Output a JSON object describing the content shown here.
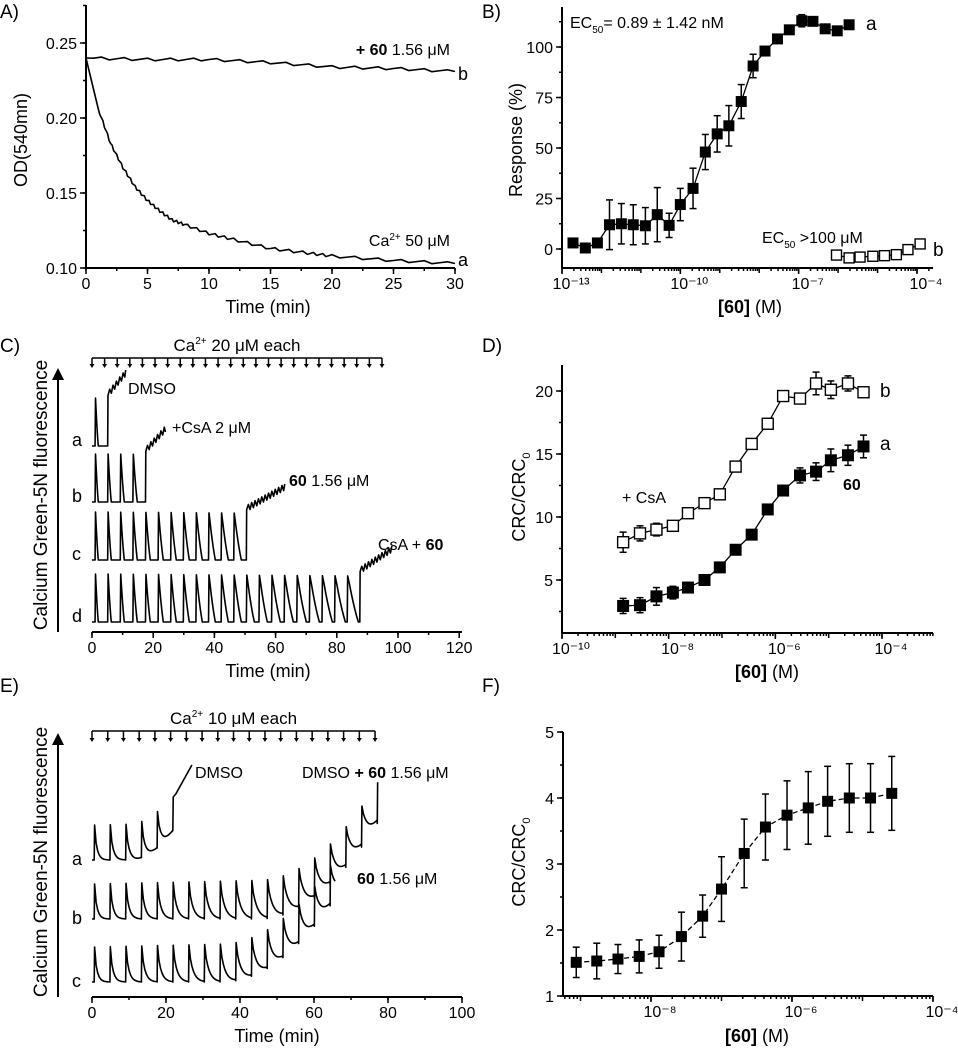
{
  "chart_data": [
    {
      "panel_label": "A)",
      "type": "line",
      "xlabel": [
        {
          "t": "Time (min)"
        }
      ],
      "ylabel": [
        {
          "t": "OD(540mn)"
        }
      ],
      "x_scale": "linear",
      "xlim": [
        0,
        30
      ],
      "ylim": [
        0.1,
        0.275
      ],
      "x_ticks": [
        {
          "value": 0,
          "label": "0"
        },
        {
          "value": 5,
          "label": "5"
        },
        {
          "value": 10,
          "label": "10"
        },
        {
          "value": 15,
          "label": "15"
        },
        {
          "value": 20,
          "label": "20"
        },
        {
          "value": 25,
          "label": "25"
        },
        {
          "value": 30,
          "label": "30"
        }
      ],
      "y_ticks": [
        {
          "value": 0.1,
          "label": "0.10"
        },
        {
          "value": 0.15,
          "label": "0.15"
        },
        {
          "value": 0.2,
          "label": "0.20"
        },
        {
          "value": 0.25,
          "label": "0.25"
        }
      ],
      "series": [
        {
          "name": "a",
          "annotation": [
            {
              "t": "Ca"
            },
            {
              "t": "2+",
              "sup": true
            },
            {
              "t": " 50 μM"
            }
          ],
          "x": [
            0,
            1,
            2,
            3,
            4,
            5,
            6,
            7,
            8,
            10,
            12,
            15,
            18,
            20,
            25,
            30
          ],
          "y": [
            0.24,
            0.206,
            0.183,
            0.167,
            0.154,
            0.145,
            0.138,
            0.132,
            0.129,
            0.123,
            0.119,
            0.113,
            0.11,
            0.108,
            0.105,
            0.103
          ]
        },
        {
          "name": "b",
          "annotation": [
            {
              "t": "+ 60",
              "bold": true
            },
            {
              "t": " 1.56 μM"
            }
          ],
          "x": [
            0,
            5,
            10,
            15,
            20,
            25,
            30
          ],
          "y": [
            0.24,
            0.239,
            0.239,
            0.237,
            0.234,
            0.233,
            0.231
          ]
        }
      ]
    },
    {
      "panel_label": "B)",
      "type": "scatter",
      "xlabel": [
        {
          "t": "[",
          "bold": true
        },
        {
          "t": "60",
          "bold": true
        },
        {
          "t": "]",
          "bold": true
        },
        {
          "t": " (M)"
        }
      ],
      "ylabel": [
        {
          "t": "Response (%)"
        }
      ],
      "x_scale": "log",
      "xlim": [
        1e-13,
        0.00025
      ],
      "ylim": [
        -9.4,
        120
      ],
      "x_ticks": [
        {
          "value": 1e-13,
          "label": "10⁻¹³"
        },
        {
          "value": 1e-10,
          "label": "10⁻¹⁰"
        },
        {
          "value": 1e-07,
          "label": "10⁻⁷"
        },
        {
          "value": 0.0001,
          "label": "10⁻⁴"
        }
      ],
      "y_ticks": [
        {
          "value": 0,
          "label": "0"
        },
        {
          "value": 25,
          "label": "25"
        },
        {
          "value": 50,
          "label": "50"
        },
        {
          "value": 75,
          "label": "75"
        },
        {
          "value": 100,
          "label": "100"
        }
      ],
      "annotations": [
        [
          {
            "t": "EC"
          },
          {
            "t": "50",
            "sub": true
          },
          {
            "t": "= 0.89 ± 1.42 nM"
          }
        ],
        [
          {
            "t": "EC"
          },
          {
            "t": "50",
            "sub": true
          },
          {
            "t": " >100 μM"
          }
        ]
      ],
      "series": [
        {
          "name": "a",
          "marker": "filled-square",
          "x": [
            1.9e-13,
            3.9e-13,
            7.9e-13,
            1.6e-12,
            3.2e-12,
            6.4e-12,
            1.3e-11,
            2.6e-11,
            5.2e-11,
            1e-10,
            2.1e-10,
            4.3e-10,
            8.6e-10,
            1.7e-09,
            3.5e-09,
            7e-09,
            1.4e-08,
            2.9e-08,
            5.8e-08,
            1.2e-07,
            2.3e-07,
            4.7e-07,
            9.5e-07,
            1.9e-06
          ],
          "y": [
            3,
            0.5,
            3,
            12,
            12.5,
            12,
            11.5,
            17,
            11.7,
            22,
            30,
            48,
            57,
            61,
            73,
            90.6,
            98,
            104,
            108.5,
            113,
            112.7,
            109,
            108,
            111
          ],
          "error": [
            1.5,
            1.5,
            1.5,
            12.3,
            10,
            9.9,
            9,
            13.4,
            6,
            8,
            10,
            8.7,
            9,
            10,
            8.4,
            5.8,
            2,
            1.5,
            1.5,
            3,
            2,
            1.5,
            1.5,
            1.5
          ]
        },
        {
          "name": "b",
          "marker": "open-square",
          "x": [
            9.1e-07,
            1.9e-06,
            3.6e-06,
            7.6e-06,
            1.5e-05,
            3e-05,
            5.9e-05,
            0.00012
          ],
          "y": [
            -3,
            -4.4,
            -4,
            -3.6,
            -3.3,
            -2.8,
            -0.3,
            2.5
          ],
          "error": [
            1.5,
            1.5,
            1.5,
            1.5,
            1.5,
            1.5,
            1.2,
            1.2
          ]
        }
      ]
    },
    {
      "panel_label": "C)",
      "type": "line",
      "xlabel": [
        {
          "t": "Time (min)"
        }
      ],
      "ylabel": [
        {
          "t": "Calcium Green-5N fluorescence"
        }
      ],
      "x_scale": "linear",
      "xlim": [
        0,
        120
      ],
      "x_ticks": [
        {
          "value": 0,
          "label": "0"
        },
        {
          "value": 20,
          "label": "20"
        },
        {
          "value": 40,
          "label": "40"
        },
        {
          "value": 60,
          "label": "60"
        },
        {
          "value": 80,
          "label": "80"
        },
        {
          "value": 100,
          "label": "100"
        },
        {
          "value": 120,
          "label": "120"
        }
      ],
      "additions_label": [
        {
          "t": "Ca"
        },
        {
          "t": "2+",
          "sup": true
        },
        {
          "t": " 20 μM each"
        }
      ],
      "additions": {
        "count": 24,
        "interval_min": 4.12
      },
      "traces": [
        {
          "label": "a",
          "annotation": [
            {
              "t": "DMSO"
            }
          ],
          "pulses_before_opening": 1,
          "end_min": 11
        },
        {
          "label": "b",
          "annotation": [
            {
              "t": "+CsA 2 μM"
            }
          ],
          "pulses_before_opening": 4,
          "end_min": 24
        },
        {
          "label": "c",
          "annotation": [
            {
              "t": "60",
              "bold": true
            },
            {
              "t": " 1.56 μM"
            }
          ],
          "pulses_before_opening": 12,
          "end_min": 63
        },
        {
          "label": "d",
          "annotation": [
            {
              "t": "CsA + "
            },
            {
              "t": "60",
              "bold": true
            }
          ],
          "pulses_before_opening": 21,
          "end_min": 98
        }
      ]
    },
    {
      "panel_label": "D)",
      "type": "scatter",
      "xlabel": [
        {
          "t": "[",
          "bold": true
        },
        {
          "t": "60",
          "bold": true
        },
        {
          "t": "]",
          "bold": true
        },
        {
          "t": " (M)"
        }
      ],
      "ylabel": [
        {
          "t": "CRC/CRC"
        },
        {
          "t": "0",
          "sub": true
        }
      ],
      "x_scale": "log",
      "xlim": [
        1e-10,
        0.0009
      ],
      "ylim": [
        0.8,
        22
      ],
      "x_ticks": [
        {
          "value": 1e-10,
          "label": "10⁻¹⁰"
        },
        {
          "value": 1e-08,
          "label": "10⁻⁸"
        },
        {
          "value": 1e-06,
          "label": "10⁻⁶"
        },
        {
          "value": 0.0001,
          "label": "10⁻⁴"
        }
      ],
      "y_ticks": [
        {
          "value": 5,
          "label": "5"
        },
        {
          "value": 10,
          "label": "10"
        },
        {
          "value": 15,
          "label": "15"
        },
        {
          "value": 20,
          "label": "20"
        }
      ],
      "annotations": [
        [
          {
            "t": "+ CsA"
          }
        ],
        [
          {
            "t": "60",
            "bold": true
          }
        ]
      ],
      "series": [
        {
          "name": "a",
          "marker": "filled-square",
          "x": [
            1.4e-09,
            2.9e-09,
            5.9e-09,
            1.2e-08,
            2.3e-08,
            4.7e-08,
            9.1e-08,
            1.8e-07,
            3.6e-07,
            7.2e-07,
            1.4e-06,
            2.9e-06,
            5.8e-06,
            1.1e-05,
            2.3e-05,
            4.5e-05
          ],
          "y": [
            2.94,
            3.0,
            3.7,
            4.0,
            4.4,
            5.0,
            6.0,
            7.4,
            8.6,
            10.6,
            12.1,
            13.3,
            13.6,
            14.5,
            14.9,
            15.6
          ],
          "error": [
            0.6,
            0.6,
            0.7,
            0.5,
            0.4,
            0.3,
            0.3,
            0.4,
            0.3,
            0.4,
            0.4,
            0.6,
            0.7,
            0.9,
            0.8,
            0.9
          ]
        },
        {
          "name": "b",
          "marker": "open-square",
          "x": [
            1.4e-09,
            2.9e-09,
            5.9e-09,
            1.2e-08,
            2.3e-08,
            4.7e-08,
            9.1e-08,
            1.8e-07,
            3.6e-07,
            7.2e-07,
            1.4e-06,
            2.9e-06,
            5.8e-06,
            1.1e-05,
            2.3e-05,
            4.5e-05
          ],
          "y": [
            8.0,
            8.7,
            9.0,
            9.3,
            10.3,
            11.1,
            11.8,
            14.0,
            15.8,
            17.4,
            19.6,
            19.4,
            20.6,
            20.1,
            20.6,
            19.9
          ],
          "error": [
            0.8,
            0.6,
            0.5,
            0.4,
            0.3,
            0.3,
            0.3,
            0.2,
            0.2,
            0.3,
            0.4,
            0.4,
            0.9,
            0.7,
            0.6,
            0.3
          ]
        }
      ]
    },
    {
      "panel_label": "E)",
      "type": "line",
      "xlabel": [
        {
          "t": "Time (min)"
        }
      ],
      "ylabel": [
        {
          "t": "Calcium Green-5N fluorescence"
        }
      ],
      "x_scale": "linear",
      "xlim": [
        0,
        100
      ],
      "x_ticks": [
        {
          "value": 0,
          "label": "0"
        },
        {
          "value": 20,
          "label": "20"
        },
        {
          "value": 40,
          "label": "40"
        },
        {
          "value": 60,
          "label": "60"
        },
        {
          "value": 80,
          "label": "80"
        },
        {
          "value": 100,
          "label": "100"
        }
      ],
      "additions_label": [
        {
          "t": "Ca"
        },
        {
          "t": "2+",
          "sup": true
        },
        {
          "t": " 10 μM each"
        }
      ],
      "additions": {
        "count": 19,
        "interval_min": 4.25
      },
      "traces": [
        {
          "label": "a",
          "annotation": [
            {
              "t": "DMSO"
            }
          ],
          "pulses_before_opening": 5,
          "end_min": 27
        },
        {
          "label": "b",
          "annotation": [
            {
              "t": "DMSO "
            },
            {
              "t": "+ 60",
              "bold": true
            },
            {
              "t": " 1.56 μM"
            }
          ],
          "pulses": 19,
          "end_min": 77.5
        },
        {
          "label": "c",
          "annotation": [
            {
              "t": "60",
              "bold": true
            },
            {
              "t": " 1.56 μM"
            }
          ],
          "pulses": 16,
          "end_min": 66
        }
      ]
    },
    {
      "panel_label": "F)",
      "type": "scatter",
      "xlabel": [
        {
          "t": "[",
          "bold": true
        },
        {
          "t": "60",
          "bold": true
        },
        {
          "t": "]",
          "bold": true
        },
        {
          "t": " (M)"
        }
      ],
      "ylabel": [
        {
          "t": "CRC/CRC"
        },
        {
          "t": "0",
          "sub": true
        }
      ],
      "x_scale": "log",
      "xlim": [
        5.6e-10,
        0.0001
      ],
      "ylim": [
        1,
        5
      ],
      "x_ticks": [
        {
          "value": 1e-08,
          "label": "10⁻⁸"
        },
        {
          "value": 1e-06,
          "label": "10⁻⁶"
        },
        {
          "value": 0.0001,
          "label": "10⁻⁴"
        }
      ],
      "y_ticks": [
        {
          "value": 1,
          "label": "1"
        },
        {
          "value": 2,
          "label": "2"
        },
        {
          "value": 3,
          "label": "3"
        },
        {
          "value": 4,
          "label": "4"
        },
        {
          "value": 5,
          "label": "5"
        }
      ],
      "series": [
        {
          "marker": "filled-square",
          "line": "dashed",
          "x": [
            8.7e-10,
            1.7e-09,
            3.4e-09,
            6.8e-09,
            1.3e-08,
            2.7e-08,
            5.4e-08,
            1e-07,
            2.1e-07,
            4.2e-07,
            8.5e-07,
            1.7e-06,
            3.2e-06,
            6.5e-06,
            1.3e-05,
            2.6e-05
          ],
          "y": [
            1.51,
            1.53,
            1.56,
            1.6,
            1.67,
            1.9,
            2.21,
            2.62,
            3.16,
            3.56,
            3.74,
            3.85,
            3.95,
            4.0,
            4.0,
            4.07
          ],
          "error": [
            0.23,
            0.27,
            0.22,
            0.25,
            0.25,
            0.37,
            0.32,
            0.49,
            0.52,
            0.5,
            0.52,
            0.55,
            0.53,
            0.52,
            0.52,
            0.56
          ]
        }
      ]
    }
  ]
}
